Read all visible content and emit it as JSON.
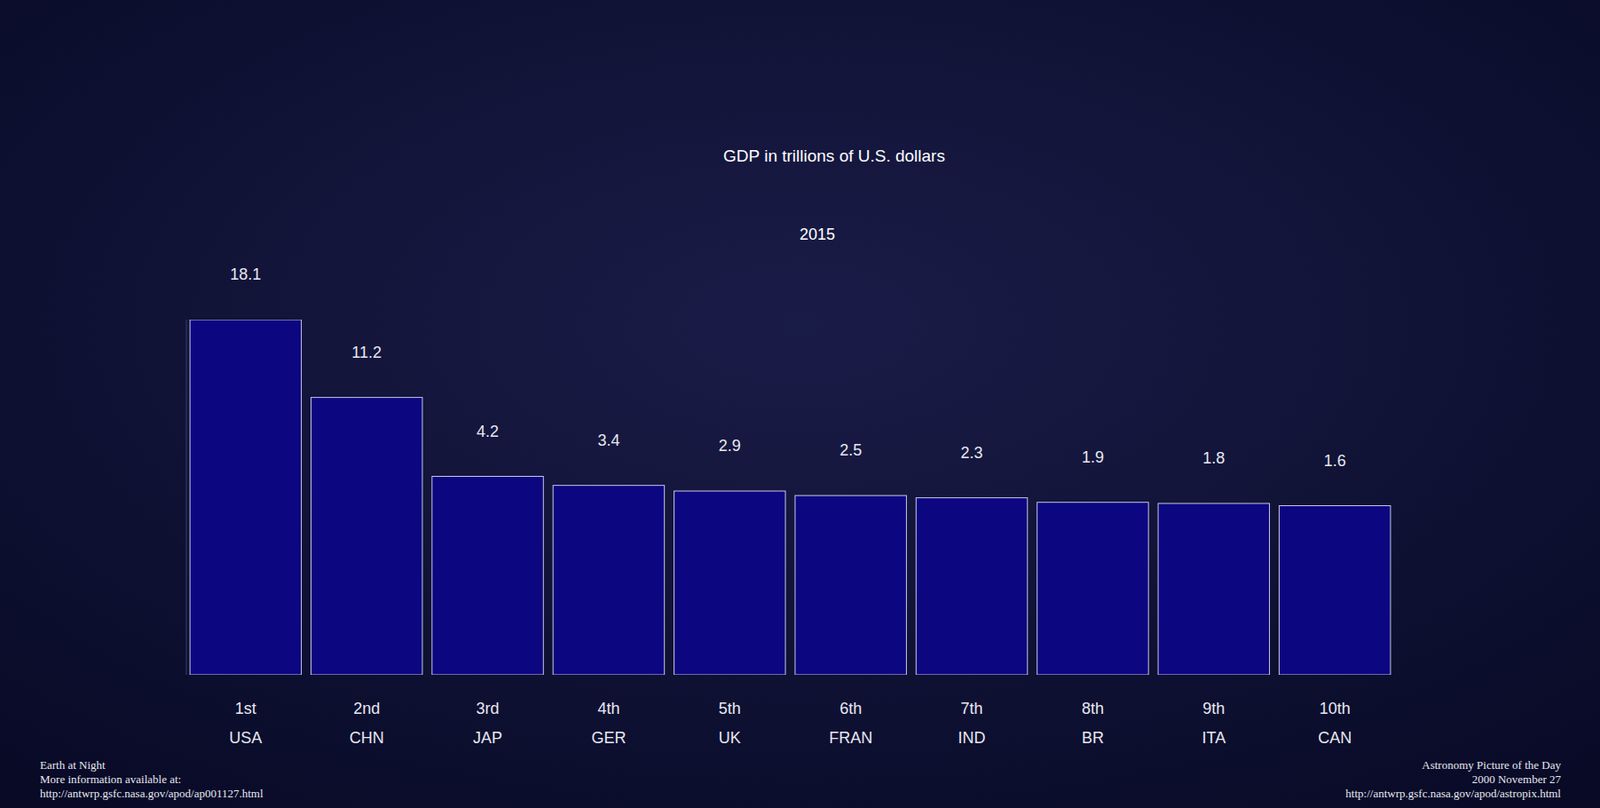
{
  "chart_data": {
    "type": "bar",
    "title": "GDP in trillions of U.S. dollars",
    "subtitle": "2015",
    "categories": [
      "USA",
      "CHN",
      "JAP",
      "GER",
      "UK",
      "FRAN",
      "IND",
      "BR",
      "ITA",
      "CAN"
    ],
    "rank_labels": [
      "1st",
      "2nd",
      "3rd",
      "4th",
      "5th",
      "6th",
      "7th",
      "8th",
      "9th",
      "10th"
    ],
    "values": [
      18.1,
      11.2,
      4.2,
      3.4,
      2.9,
      2.5,
      2.3,
      1.9,
      1.8,
      1.6
    ],
    "color": "#0c0680",
    "ylim": [
      -13.4,
      18.1
    ],
    "tick_labels": "x",
    "grid": false,
    "data_labels": true,
    "source_left": [
      "Earth at Night",
      "More information available at:",
      "http://antwrp.gsfc.nasa.gov/apod/ap001127.html"
    ],
    "source_right": [
      "Astronomy Picture of the Day",
      "2000 November 27",
      "http://antwrp.gsfc.nasa.gov/apod/astropix.html"
    ]
  }
}
